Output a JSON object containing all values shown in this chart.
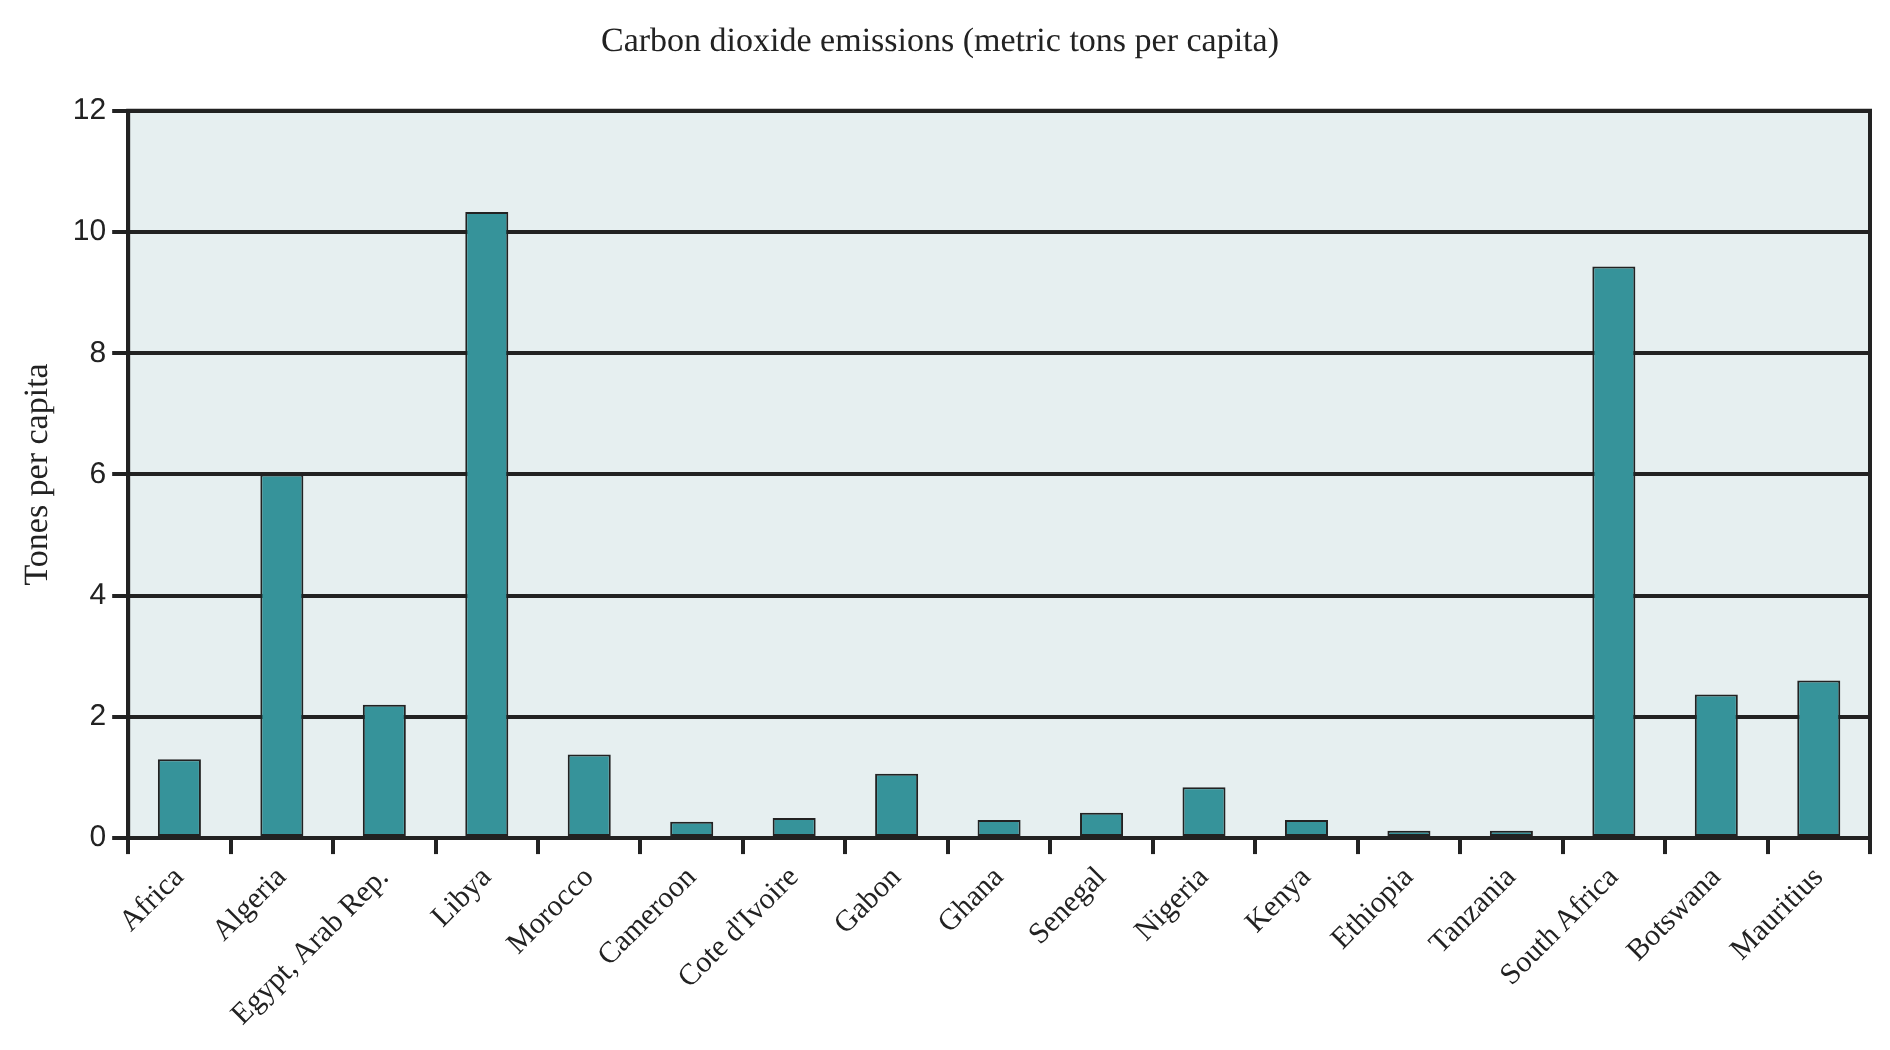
{
  "chart_data": {
    "type": "bar",
    "title": "Carbon dioxide emissions (metric tons per capita)",
    "ylabel": "Tones per capita",
    "categories": [
      "Africa",
      "Algeria",
      "Egypt, Arab Rep.",
      "Libya",
      "Morocco",
      "Cameroon",
      "Cote d'Ivoire",
      "Gabon",
      "Ghana",
      "Senegal",
      "Nigeria",
      "Kenya",
      "Ethiopia",
      "Tanzania",
      "South Africa",
      "Botswana",
      "Mauritius"
    ],
    "values": [
      1.3,
      6.0,
      2.2,
      10.33,
      1.38,
      0.27,
      0.33,
      1.06,
      0.3,
      0.42,
      0.84,
      0.3,
      0.12,
      0.12,
      9.43,
      2.37,
      2.6
    ],
    "color": "#36939a",
    "ylim": [
      0,
      12
    ],
    "yticks": [
      0,
      2,
      4,
      6,
      8,
      10,
      12
    ],
    "grid": "y",
    "legend": false
  }
}
